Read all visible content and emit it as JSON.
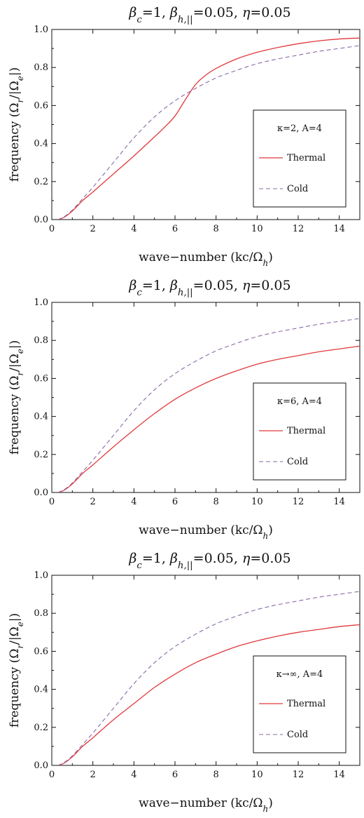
{
  "figure": {
    "title_latex_like": "βc=1, βh,||=0.05, η=0.05"
  },
  "colors": {
    "thermal": "#e0393c",
    "cold": "#8a6aa6",
    "axis": "#111111"
  },
  "chart_data": [
    {
      "type": "line",
      "title": "βc=1, βh,||=0.05, η=0.05",
      "xlabel": "wave−number (kc/Ωh)",
      "ylabel": "frequency (Ωr/|Ωe|)",
      "xlim": [
        0,
        15
      ],
      "ylim": [
        0,
        1.0
      ],
      "xticks": [
        0,
        2,
        4,
        6,
        8,
        10,
        12,
        14
      ],
      "yticks": [
        0.0,
        0.2,
        0.4,
        0.6,
        0.8,
        1.0
      ],
      "legend_title": "κ=2, A=4",
      "legend_position": "right-middle",
      "series": [
        {
          "name": "Thermal",
          "style": "solid",
          "x": [
            0.3,
            0.6,
            1,
            1.5,
            2,
            3,
            4,
            5,
            5.5,
            6,
            6.5,
            7,
            7.5,
            8,
            9,
            10,
            11,
            12,
            13,
            14,
            15
          ],
          "y": [
            0.0,
            0.012,
            0.045,
            0.1,
            0.145,
            0.24,
            0.335,
            0.435,
            0.487,
            0.545,
            0.63,
            0.71,
            0.76,
            0.795,
            0.845,
            0.88,
            0.905,
            0.925,
            0.94,
            0.95,
            0.955
          ]
        },
        {
          "name": "Cold",
          "style": "dashed",
          "x": [
            0.3,
            0.6,
            1,
            1.5,
            2,
            3,
            4,
            5,
            6,
            7,
            8,
            9,
            10,
            11,
            12,
            13,
            14,
            15
          ],
          "y": [
            0.0,
            0.015,
            0.05,
            0.11,
            0.17,
            0.3,
            0.43,
            0.54,
            0.625,
            0.69,
            0.745,
            0.785,
            0.82,
            0.845,
            0.865,
            0.885,
            0.9,
            0.915
          ]
        }
      ]
    },
    {
      "type": "line",
      "title": "βc=1, βh,||=0.05, η=0.05",
      "xlabel": "wave−number (kc/Ωh)",
      "ylabel": "frequency (Ωr/|Ωe|)",
      "xlim": [
        0,
        15
      ],
      "ylim": [
        0,
        1.0
      ],
      "xticks": [
        0,
        2,
        4,
        6,
        8,
        10,
        12,
        14
      ],
      "yticks": [
        0.0,
        0.2,
        0.4,
        0.6,
        0.8,
        1.0
      ],
      "legend_title": "κ=6, A=4",
      "legend_position": "right-middle",
      "series": [
        {
          "name": "Thermal",
          "style": "solid",
          "x": [
            0.3,
            0.6,
            1,
            1.5,
            2,
            3,
            4,
            5,
            6,
            7,
            8,
            9,
            10,
            11,
            12,
            13,
            14,
            15
          ],
          "y": [
            0.0,
            0.012,
            0.045,
            0.1,
            0.145,
            0.24,
            0.33,
            0.415,
            0.49,
            0.55,
            0.6,
            0.64,
            0.675,
            0.7,
            0.72,
            0.74,
            0.755,
            0.77
          ]
        },
        {
          "name": "Cold",
          "style": "dashed",
          "x": [
            0.3,
            0.6,
            1,
            1.5,
            2,
            3,
            4,
            5,
            6,
            7,
            8,
            9,
            10,
            11,
            12,
            13,
            14,
            15
          ],
          "y": [
            0.0,
            0.015,
            0.05,
            0.11,
            0.17,
            0.3,
            0.43,
            0.54,
            0.625,
            0.69,
            0.745,
            0.785,
            0.82,
            0.845,
            0.865,
            0.885,
            0.9,
            0.915
          ]
        }
      ]
    },
    {
      "type": "line",
      "title": "βc=1, βh,||=0.05, η=0.05",
      "xlabel": "wave−number (kc/Ωh)",
      "ylabel": "frequency (Ωr/|Ωe|)",
      "xlim": [
        0,
        15
      ],
      "ylim": [
        0,
        1.0
      ],
      "xticks": [
        0,
        2,
        4,
        6,
        8,
        10,
        12,
        14
      ],
      "yticks": [
        0.0,
        0.2,
        0.4,
        0.6,
        0.8,
        1.0
      ],
      "legend_title": "κ→∞, A=4",
      "legend_position": "right-middle",
      "series": [
        {
          "name": "Thermal",
          "style": "solid",
          "x": [
            0.3,
            0.6,
            1,
            1.5,
            2,
            3,
            4,
            5,
            6,
            7,
            8,
            9,
            10,
            11,
            12,
            13,
            14,
            15
          ],
          "y": [
            0.0,
            0.012,
            0.045,
            0.1,
            0.145,
            0.24,
            0.325,
            0.41,
            0.48,
            0.54,
            0.585,
            0.625,
            0.655,
            0.68,
            0.7,
            0.715,
            0.73,
            0.74
          ]
        },
        {
          "name": "Cold",
          "style": "dashed",
          "x": [
            0.3,
            0.6,
            1,
            1.5,
            2,
            3,
            4,
            5,
            6,
            7,
            8,
            9,
            10,
            11,
            12,
            13,
            14,
            15
          ],
          "y": [
            0.0,
            0.015,
            0.05,
            0.11,
            0.17,
            0.3,
            0.43,
            0.54,
            0.625,
            0.69,
            0.745,
            0.785,
            0.82,
            0.845,
            0.865,
            0.885,
            0.9,
            0.915
          ]
        }
      ]
    }
  ]
}
